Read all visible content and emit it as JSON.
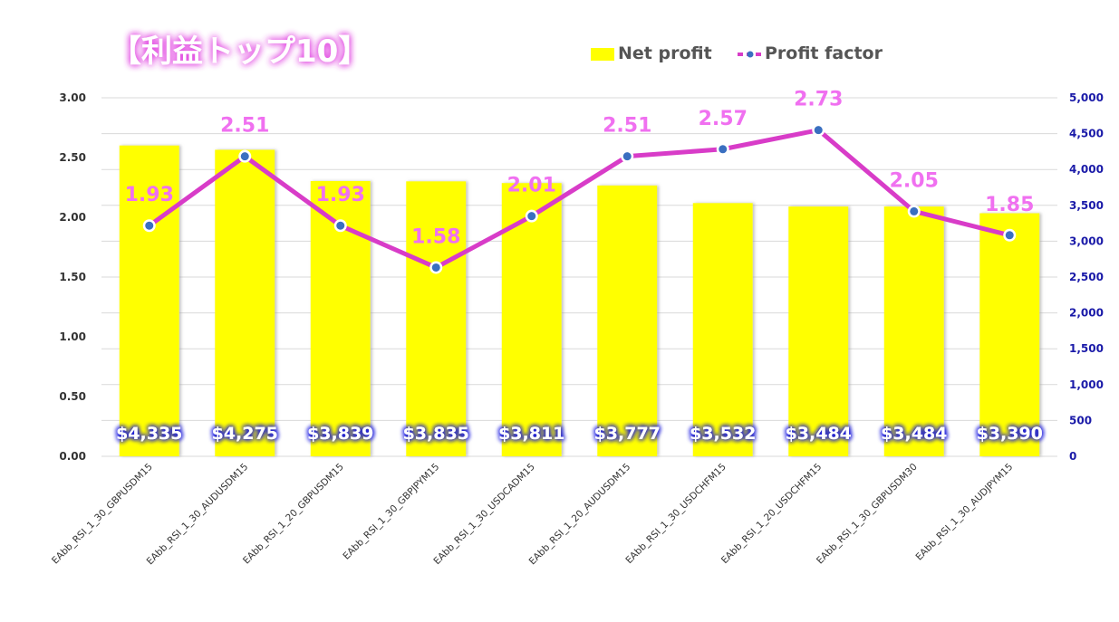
{
  "chart_data": {
    "type": "bar+line",
    "title": "【利益トップ10】",
    "categories": [
      "EAbb_RSI_1_30_GBPUSDM15",
      "EAbb_RSI_1_30_AUDUSDM15",
      "EAbb_RSI_1_20_GBPUSDM15",
      "EAbb_RSI_1_30_GBPJPYM15",
      "EAbb_RSI_1_30_USDCADM15",
      "EAbb_RSI_1_20_AUDUSDM15",
      "EAbb_RSI_1_30_USDCHFM15",
      "EAbb_RSI_1_20_USDCHFM15",
      "EAbb_RSI_1_30_GBPUSDM30",
      "EAbb_RSI_1_30_AUDJPYM15"
    ],
    "series": [
      {
        "name": "Net profit",
        "type": "bar",
        "axis": "right",
        "color": "#ffff00",
        "values": [
          4335,
          4275,
          3839,
          3835,
          3811,
          3777,
          3532,
          3484,
          3484,
          3390
        ],
        "labels": [
          "$4,335",
          "$4,275",
          "$3,839",
          "$3,835",
          "$3,811",
          "$3,777",
          "$3,532",
          "$3,484",
          "$3,484",
          "$3,390"
        ]
      },
      {
        "name": "Profit factor",
        "type": "line",
        "axis": "left",
        "color": "#d83cc8",
        "values": [
          1.93,
          2.51,
          1.93,
          1.58,
          2.01,
          2.51,
          2.57,
          2.73,
          2.05,
          1.85
        ],
        "labels": [
          "1.93",
          "2.51",
          "1.93",
          "1.58",
          "2.01",
          "2.51",
          "2.57",
          "2.73",
          "2.05",
          "1.85"
        ]
      }
    ],
    "y_left": {
      "min": 0,
      "max": 3,
      "step": 0.5,
      "ticks": [
        "0.00",
        "0.50",
        "1.00",
        "1.50",
        "2.00",
        "2.50",
        "3.00"
      ]
    },
    "y_right": {
      "min": 0,
      "max": 5000,
      "step": 500,
      "ticks": [
        "0",
        "500",
        "1,000",
        "1,500",
        "2,000",
        "2,500",
        "3,000",
        "3,500",
        "4,000",
        "4,500",
        "5,000"
      ]
    },
    "grid": true,
    "legend_position": "top-right"
  },
  "colors": {
    "title_bg": "#e040e0",
    "bar": "#ffff00",
    "line": "#d83cc8",
    "marker": "#3a6fc0",
    "pf_label": "#f070f0",
    "np_label_bg": "#2a2ad8",
    "grid": "#d9d9d9"
  }
}
